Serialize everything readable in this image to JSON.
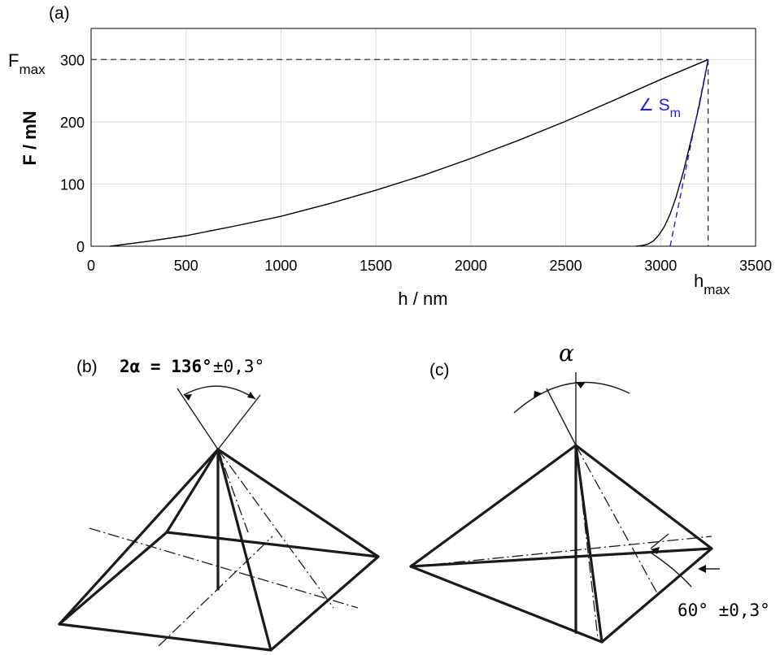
{
  "chart_data": [
    {
      "panel": "(a)",
      "type": "line",
      "xlabel": "h / nm",
      "ylabel": "F / mN",
      "xlim": [
        0,
        3500
      ],
      "ylim": [
        0,
        350
      ],
      "xticks": [
        0,
        500,
        1000,
        1500,
        2000,
        2500,
        3000,
        3500
      ],
      "yticks": [
        0,
        100,
        200,
        300
      ],
      "grid": true,
      "series": [
        {
          "color": "#000000",
          "x": [
            100,
            300,
            500,
            750,
            1000,
            1250,
            1500,
            1750,
            2000,
            2250,
            2500,
            2750,
            3000,
            3250
          ],
          "y": [
            0,
            8,
            17,
            32,
            48,
            68,
            90,
            114,
            141,
            170,
            201,
            234,
            268,
            300
          ]
        },
        {
          "color": "#000000",
          "x": [
            3250,
            3230,
            3200,
            3160,
            3120,
            3080,
            3050,
            3020,
            2990,
            2960,
            2930,
            2900,
            2870
          ],
          "y": [
            300,
            268,
            222,
            170,
            120,
            78,
            52,
            32,
            18,
            8,
            3,
            1,
            0
          ]
        },
        {
          "color": "#2020e0",
          "style": "dashed",
          "x": [
            3050,
            3250
          ],
          "y": [
            0,
            300
          ]
        }
      ],
      "annotations": {
        "fmax_main": "F",
        "fmax_sub": "max",
        "hmax_main": "h",
        "hmax_sub": "max",
        "sm_main": "∠ S",
        "sm_sub": "m",
        "fmax_value": 300,
        "hmax_value": 3250
      }
    }
  ],
  "diagram_b": {
    "label": "(b)",
    "angle_text": "2α = 136°",
    "tolerance_text": "±0,3°"
  },
  "diagram_c": {
    "label": "(c)",
    "angle_symbol": "α",
    "angle_text": "60° ±0,3°"
  },
  "colors": {
    "curve": "#000000",
    "slope": "#2020e0",
    "grid": "#d9d9d9"
  }
}
